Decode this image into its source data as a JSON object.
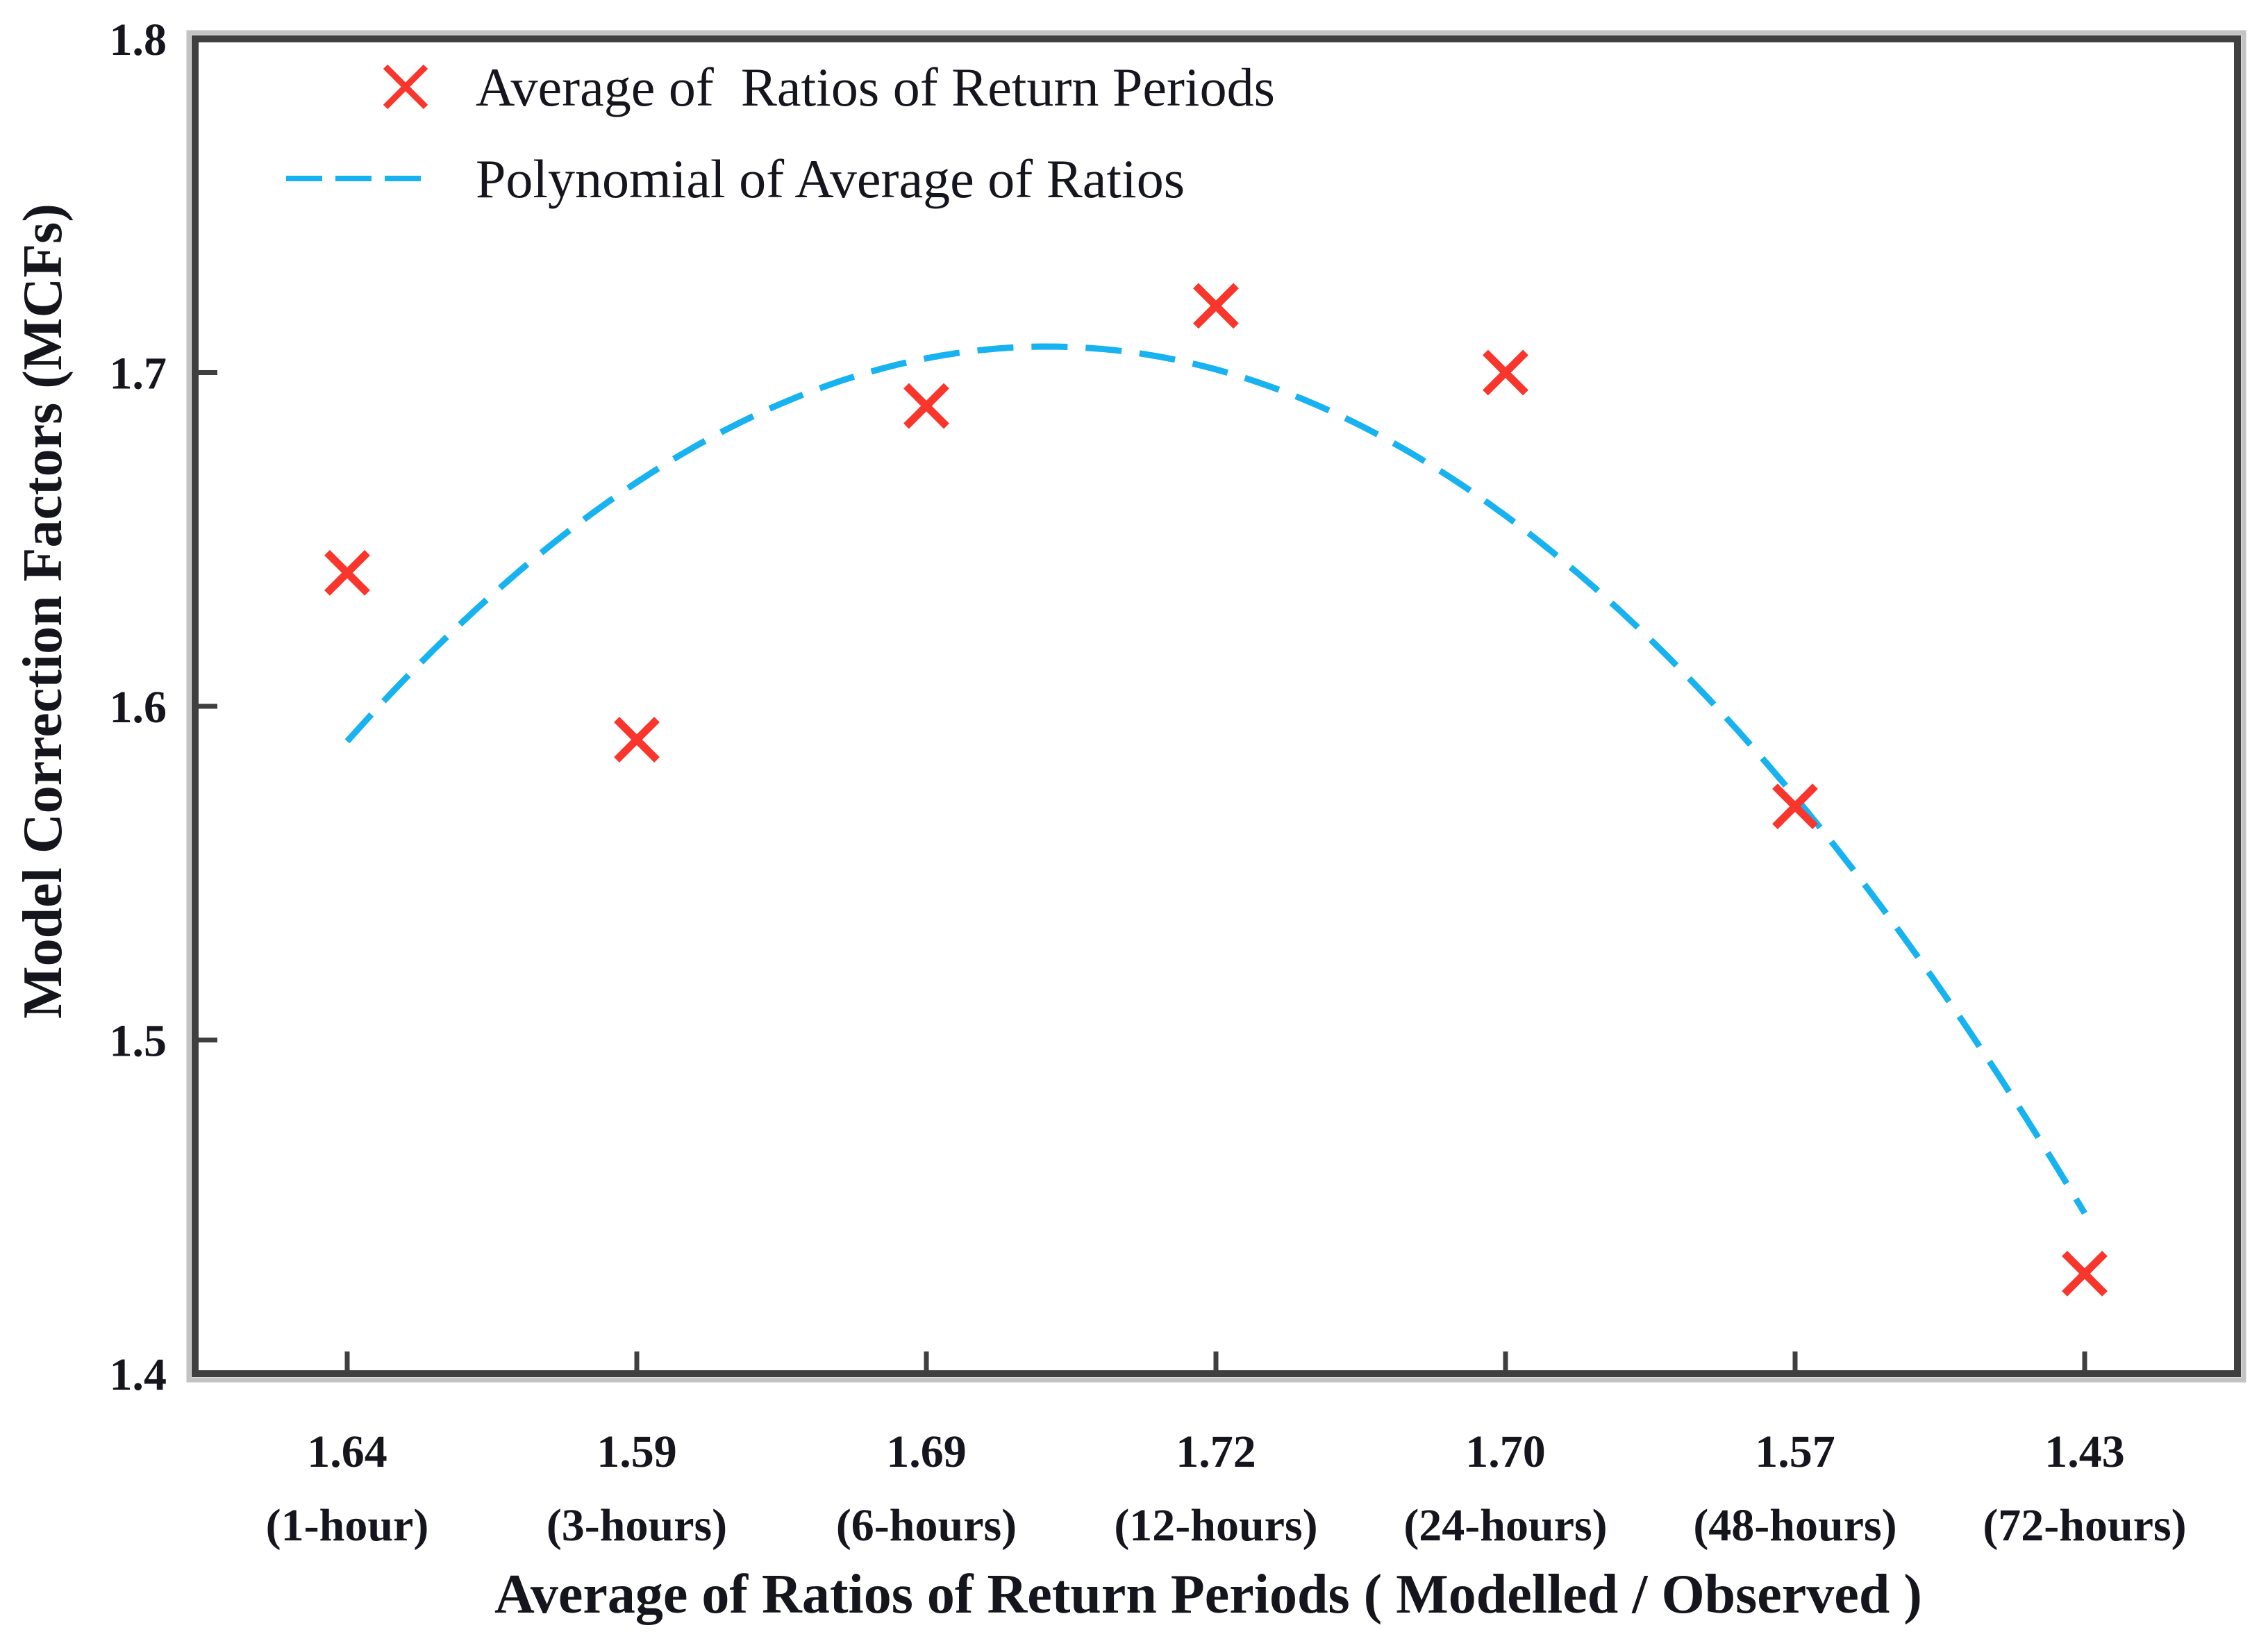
{
  "figure": {
    "background_color": "#ffffff",
    "description": "Scatter plot of Model Correction Factors versus average ratios of return periods with dashed polynomial trend line"
  },
  "colors": {
    "marker_red": "#f9352c",
    "curve_cyan": "#17b2f0",
    "frame_dark": "#3f3f3f",
    "frame_shadow": "#c3c3c3",
    "text": "#15151d"
  },
  "legend": {
    "items": [
      {
        "label": "Average of  Ratios of Return Periods",
        "swatch": "x-cross-icon",
        "color": "#f9352c"
      },
      {
        "label": "Polynomial of Average of Ratios",
        "swatch": "dashed-line-icon",
        "color": "#17b2f0"
      }
    ]
  },
  "chart_data": {
    "type": "scatter",
    "title": "",
    "xlabel": "Average of Ratios of Return Periods ( Modelled / Observed )",
    "ylabel": "Model Correction Factors (MCFs)",
    "ylim": [
      1.4,
      1.8
    ],
    "y_ticks": [
      "1.8",
      "1.7",
      "1.6",
      "1.5",
      "1.4"
    ],
    "x_ticks": [
      {
        "value": "1.64",
        "period": "(1-hour)"
      },
      {
        "value": "1.59",
        "period": "(3-hours)"
      },
      {
        "value": "1.69",
        "period": "(6-hours)"
      },
      {
        "value": "1.72",
        "period": "(12-hours)"
      },
      {
        "value": "1.70",
        "period": "(24-hours)"
      },
      {
        "value": "1.57",
        "period": "(48-hours)"
      },
      {
        "value": "1.43",
        "period": "(72-hours)"
      }
    ],
    "grid": false,
    "legend_position": "top-left-inside",
    "series": [
      {
        "name": "Average of Ratios of Return Periods",
        "type": "scatter",
        "marker": "x",
        "color": "#f9352c",
        "values": [
          1.64,
          1.59,
          1.69,
          1.72,
          1.7,
          1.57,
          1.43
        ]
      },
      {
        "name": "Polynomial of Average of Ratios",
        "type": "line",
        "style": "dashed",
        "color": "#17b2f0",
        "polynomial_coefficients": [
          1.58952,
          0.097857,
          -0.020238
        ],
        "x_domain_category_index": [
          0,
          6
        ],
        "endpoint_values": [
          1.59,
          1.71,
          1.45
        ]
      }
    ]
  }
}
